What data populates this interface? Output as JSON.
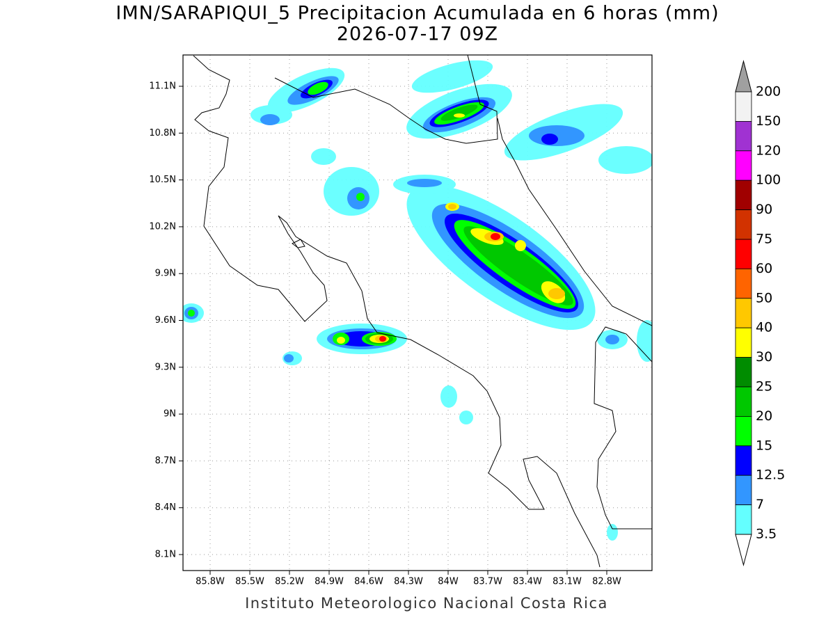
{
  "title": "IMN/SARAPIQUI_5 Precipitacion Acumulada en 6 horas (mm)",
  "subtitle": "2026-07-17 09Z",
  "map": {
    "lat_labels": [
      "11.1N",
      "10.8N",
      "10.5N",
      "10.2N",
      "9.9N",
      "9.6N",
      "9.3N",
      "9N",
      "8.7N",
      "8.4N",
      "8.1N"
    ],
    "lon_labels": [
      "85.8W",
      "85.5W",
      "85.2W",
      "84.9W",
      "84.6W",
      "84.3W",
      "84W",
      "83.7W",
      "83.4W",
      "83.1W",
      "82.8W"
    ]
  },
  "colorbar": {
    "labels": [
      "200",
      "150",
      "120",
      "100",
      "90",
      "75",
      "60",
      "50",
      "40",
      "30",
      "25",
      "20",
      "15",
      "12.5",
      "7",
      "3.5"
    ],
    "colors": [
      "#f2f2f2",
      "#a032d2",
      "#ff00ff",
      "#a00000",
      "#d23200",
      "#ff0000",
      "#ff6400",
      "#ffc800",
      "#ffff00",
      "#008c00",
      "#00c800",
      "#00ff00",
      "#0000ff",
      "#3296ff",
      "#64ffff"
    ],
    "over_color": "#a0a0a0",
    "under_color": "#ffffff"
  },
  "footer": "Instituto Meteorologico Nacional Costa Rica"
}
